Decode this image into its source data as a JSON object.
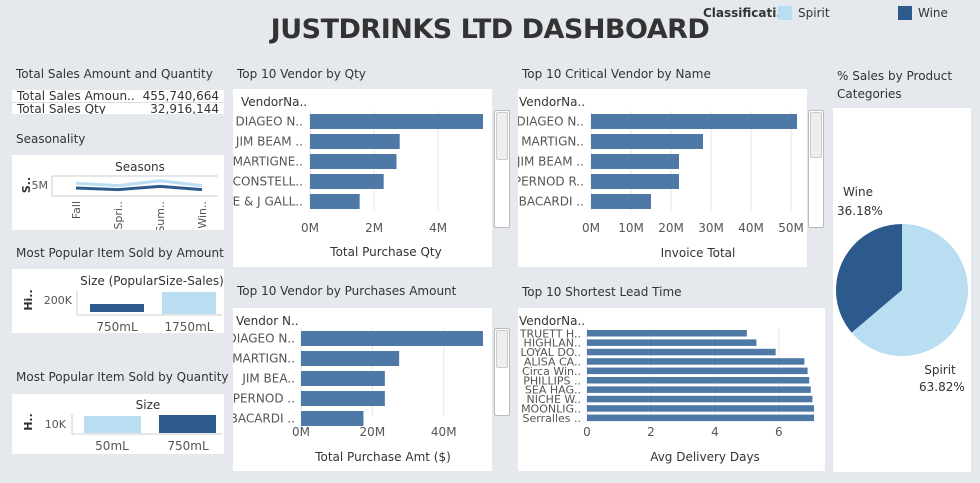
{
  "dashboard_title": "JUSTDRINKS LTD DASHBOARD",
  "legend": {
    "title": "Classificati..",
    "items": [
      {
        "label": "Spirit",
        "color": "#b9ddf1"
      },
      {
        "label": "Wine",
        "color": "#2c5a8c"
      }
    ]
  },
  "colors": {
    "bar": "#4e79a7",
    "spirit": "#b9ddf1",
    "wine": "#2c5a8c"
  },
  "kpi": {
    "heading": "Total Sales Amount and Quantity",
    "rows": [
      {
        "label": "Total Sales Amoun..",
        "value": "455,740,664"
      },
      {
        "label": "Total Sales Qty",
        "value": "32,916,144"
      }
    ]
  },
  "chart_data": [
    {
      "id": "seasonality",
      "heading": "Seasonality",
      "type": "line",
      "title": "Seasons",
      "ylabel": "S..",
      "yticks": [
        "5M"
      ],
      "categories": [
        "Fall",
        "Spri..",
        "Sum..",
        "Win.."
      ],
      "series": [
        {
          "color": "#b9ddf1",
          "values": [
            5.6,
            5.3,
            5.9,
            5.3
          ]
        },
        {
          "color": "#2c5a8c",
          "values": [
            5.0,
            4.8,
            5.2,
            4.8
          ]
        }
      ]
    },
    {
      "id": "top10_vendor_qty",
      "heading": "Top 10 Vendor by Qty",
      "type": "bar",
      "orientation": "horizontal",
      "category_header": "VendorNa..",
      "categories": [
        "DIAGEO N..",
        "JIM BEAM ..",
        "MARTIGNE..",
        "CONSTELL..",
        "E & J GALL.."
      ],
      "values": [
        5400000,
        2800000,
        2700000,
        2300000,
        1550000
      ],
      "xticks": [
        "0M",
        "2M",
        "4M"
      ],
      "xlabel": "Total Purchase Qty"
    },
    {
      "id": "top10_critical_vendor",
      "heading": "Top 10 Critical Vendor by Name",
      "type": "bar",
      "orientation": "horizontal",
      "category_header": "VendorNa..",
      "categories": [
        "DIAGEO N..",
        "MARTIGN..",
        "JIM BEAM ..",
        "PERNOD R..",
        "BACARDI .."
      ],
      "values": [
        51500000,
        28000000,
        22000000,
        22000000,
        15000000
      ],
      "xticks": [
        "0M",
        "10M",
        "20M",
        "30M",
        "40M",
        "50M"
      ],
      "xlabel": "Invoice Total"
    },
    {
      "id": "pct_sales_category",
      "heading": "% Sales by Product Categories",
      "type": "pie",
      "slices": [
        {
          "label": "Wine",
          "pct": "36.18%",
          "value": 36.18
        },
        {
          "label": "Spirit",
          "pct": "63.82%",
          "value": 63.82
        }
      ]
    },
    {
      "id": "popular_item_amount",
      "heading": "Most Popular Item Sold by Amount",
      "type": "bar",
      "title": "Size (PopularSize-Sales)",
      "ylabel": "Hi..",
      "yticks": [
        "200K"
      ],
      "categories": [
        "750mL",
        "1750mL"
      ]
    },
    {
      "id": "top10_vendor_purchases",
      "heading": "Top 10 Vendor by Purchases Amount",
      "type": "bar",
      "orientation": "horizontal",
      "category_header": "Vendor N..",
      "categories": [
        "DIAGEO N..",
        "MARTIGN..",
        "JIM BEA..",
        "PERNOD ..",
        "BACARDI .."
      ],
      "values": [
        51000000,
        27500000,
        23500000,
        23500000,
        17500000
      ],
      "xticks": [
        "0M",
        "20M",
        "40M"
      ],
      "xlabel": "Total Purchase Amt ($)"
    },
    {
      "id": "shortest_lead_time",
      "heading": "Top  10 Shortest Lead Time",
      "type": "bar",
      "orientation": "horizontal",
      "category_header": "VendorNa..",
      "categories": [
        "TRUETT H..",
        "HIGHLAN..",
        "LOYAL DO..",
        "ALISA CA..",
        "Circa Win..",
        "PHILLIPS ..",
        "SEA HAG..",
        "NICHE W..",
        "MOONLIG..",
        "Serralles .."
      ],
      "values": [
        5.0,
        5.3,
        5.9,
        6.8,
        6.9,
        6.95,
        7.0,
        7.05,
        7.1,
        7.1
      ],
      "xticks": [
        "0",
        "2",
        "4",
        "6"
      ],
      "xlabel": "Avg Delivery Days"
    },
    {
      "id": "popular_item_quantity",
      "heading": "Most Popular Item Sold by Quantity",
      "type": "bar",
      "title": "Size",
      "ylabel": "H..",
      "yticks": [
        "10K"
      ],
      "categories": [
        "50mL",
        "750mL"
      ]
    }
  ]
}
